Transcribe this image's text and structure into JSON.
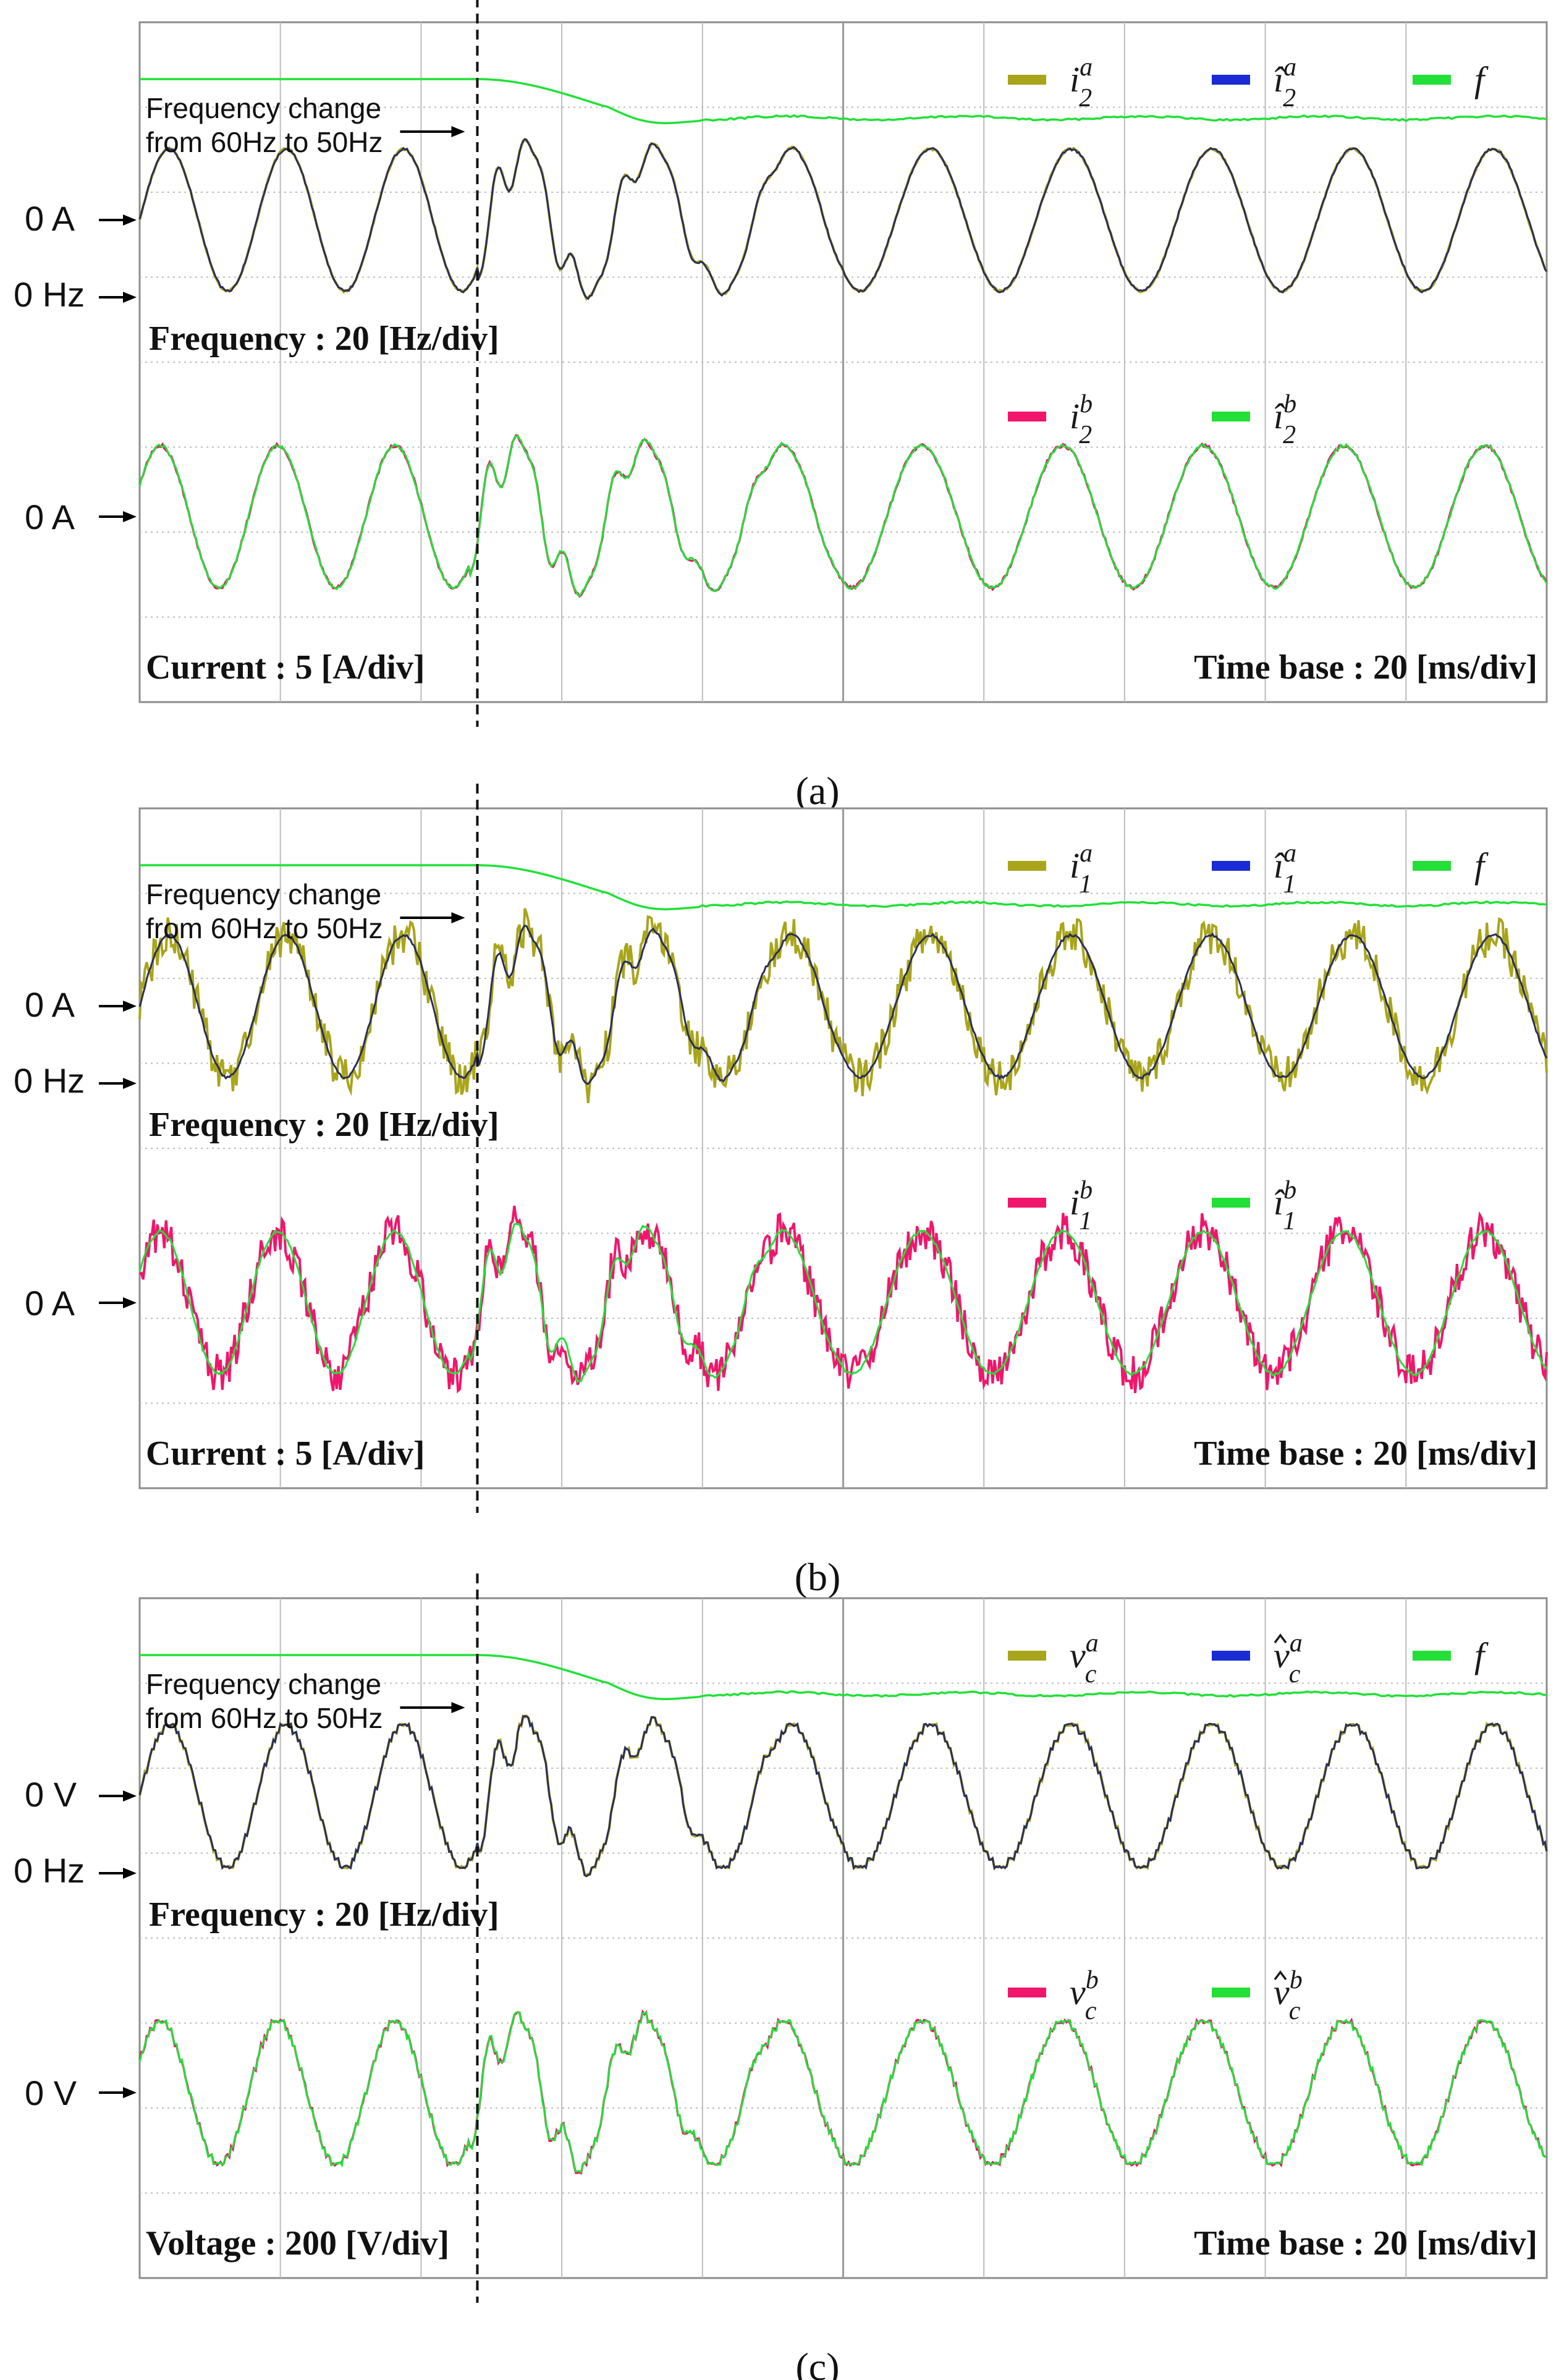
{
  "colors": {
    "olive": "#a8a51a",
    "blue": "#1a2bd6",
    "green": "#22e038",
    "pink": "#f0166c",
    "navy": "#2b2f57",
    "grid": "#bdbdbd",
    "frame": "#8c8c8c"
  },
  "chart_data": [
    {
      "type": "line",
      "panel_label": "(a)",
      "annotation_top": "Frequency change",
      "annotation_bottom": "from 60Hz to 50Hz",
      "upper_ref_labels": [
        "0 A",
        "0 Hz"
      ],
      "upper_scale": "Frequency : 20 [Hz/div]",
      "upper_legend": [
        {
          "name": "i_2^a",
          "color": "#a8a51a"
        },
        {
          "name": "î_2^a",
          "color": "#1a2bd6"
        },
        {
          "name": "f",
          "color": "#22e038"
        }
      ],
      "lower_ref_label": "0 A",
      "lower_legend": [
        {
          "name": "i_2^b",
          "color": "#f0166c"
        },
        {
          "name": "î_2^b",
          "color": "#22e038"
        }
      ],
      "bottom_left_scale": "Current : 5 [A/div]",
      "bottom_right_scale": "Time base : 20 [ms/div]",
      "frequency_hz": {
        "before": 60,
        "after": 50
      },
      "event_time_ms": 48,
      "time_window_ms": [
        0,
        200
      ],
      "waveform_profile": "clean",
      "grid": true
    },
    {
      "type": "line",
      "panel_label": "(b)",
      "annotation_top": "Frequency change",
      "annotation_bottom": "from 60Hz to 50Hz",
      "upper_ref_labels": [
        "0 A",
        "0 Hz"
      ],
      "upper_scale": "Frequency : 20 [Hz/div]",
      "upper_legend": [
        {
          "name": "i_1^a",
          "color": "#a8a51a"
        },
        {
          "name": "î_1^a",
          "color": "#1a2bd6"
        },
        {
          "name": "f",
          "color": "#22e038"
        }
      ],
      "lower_ref_label": "0 A",
      "lower_legend": [
        {
          "name": "i_1^b",
          "color": "#f0166c"
        },
        {
          "name": "î_1^b",
          "color": "#22e038"
        }
      ],
      "bottom_left_scale": "Current : 5 [A/div]",
      "bottom_right_scale": "Time base : 20 [ms/div]",
      "frequency_hz": {
        "before": 60,
        "after": 50
      },
      "event_time_ms": 48,
      "time_window_ms": [
        0,
        200
      ],
      "waveform_profile": "noisy",
      "grid": true
    },
    {
      "type": "line",
      "panel_label": "(c)",
      "annotation_top": "Frequency change",
      "annotation_bottom": "from 60Hz to 50Hz",
      "upper_ref_labels": [
        "0 V",
        "0 Hz"
      ],
      "upper_scale": "Frequency : 20 [Hz/div]",
      "upper_legend": [
        {
          "name": "v_c^a",
          "color": "#a8a51a"
        },
        {
          "name": "v̂_c^a",
          "color": "#1a2bd6"
        },
        {
          "name": "f",
          "color": "#22e038"
        }
      ],
      "lower_ref_label": "0 V",
      "lower_legend": [
        {
          "name": "v_c^b",
          "color": "#f0166c"
        },
        {
          "name": "v̂_c^b",
          "color": "#22e038"
        }
      ],
      "bottom_left_scale": "Voltage : 200 [V/div]",
      "bottom_right_scale": "Time base : 20 [ms/div]",
      "frequency_hz": {
        "before": 60,
        "after": 50
      },
      "event_time_ms": 48,
      "time_window_ms": [
        0,
        200
      ],
      "waveform_profile": "stepped",
      "grid": true
    }
  ]
}
